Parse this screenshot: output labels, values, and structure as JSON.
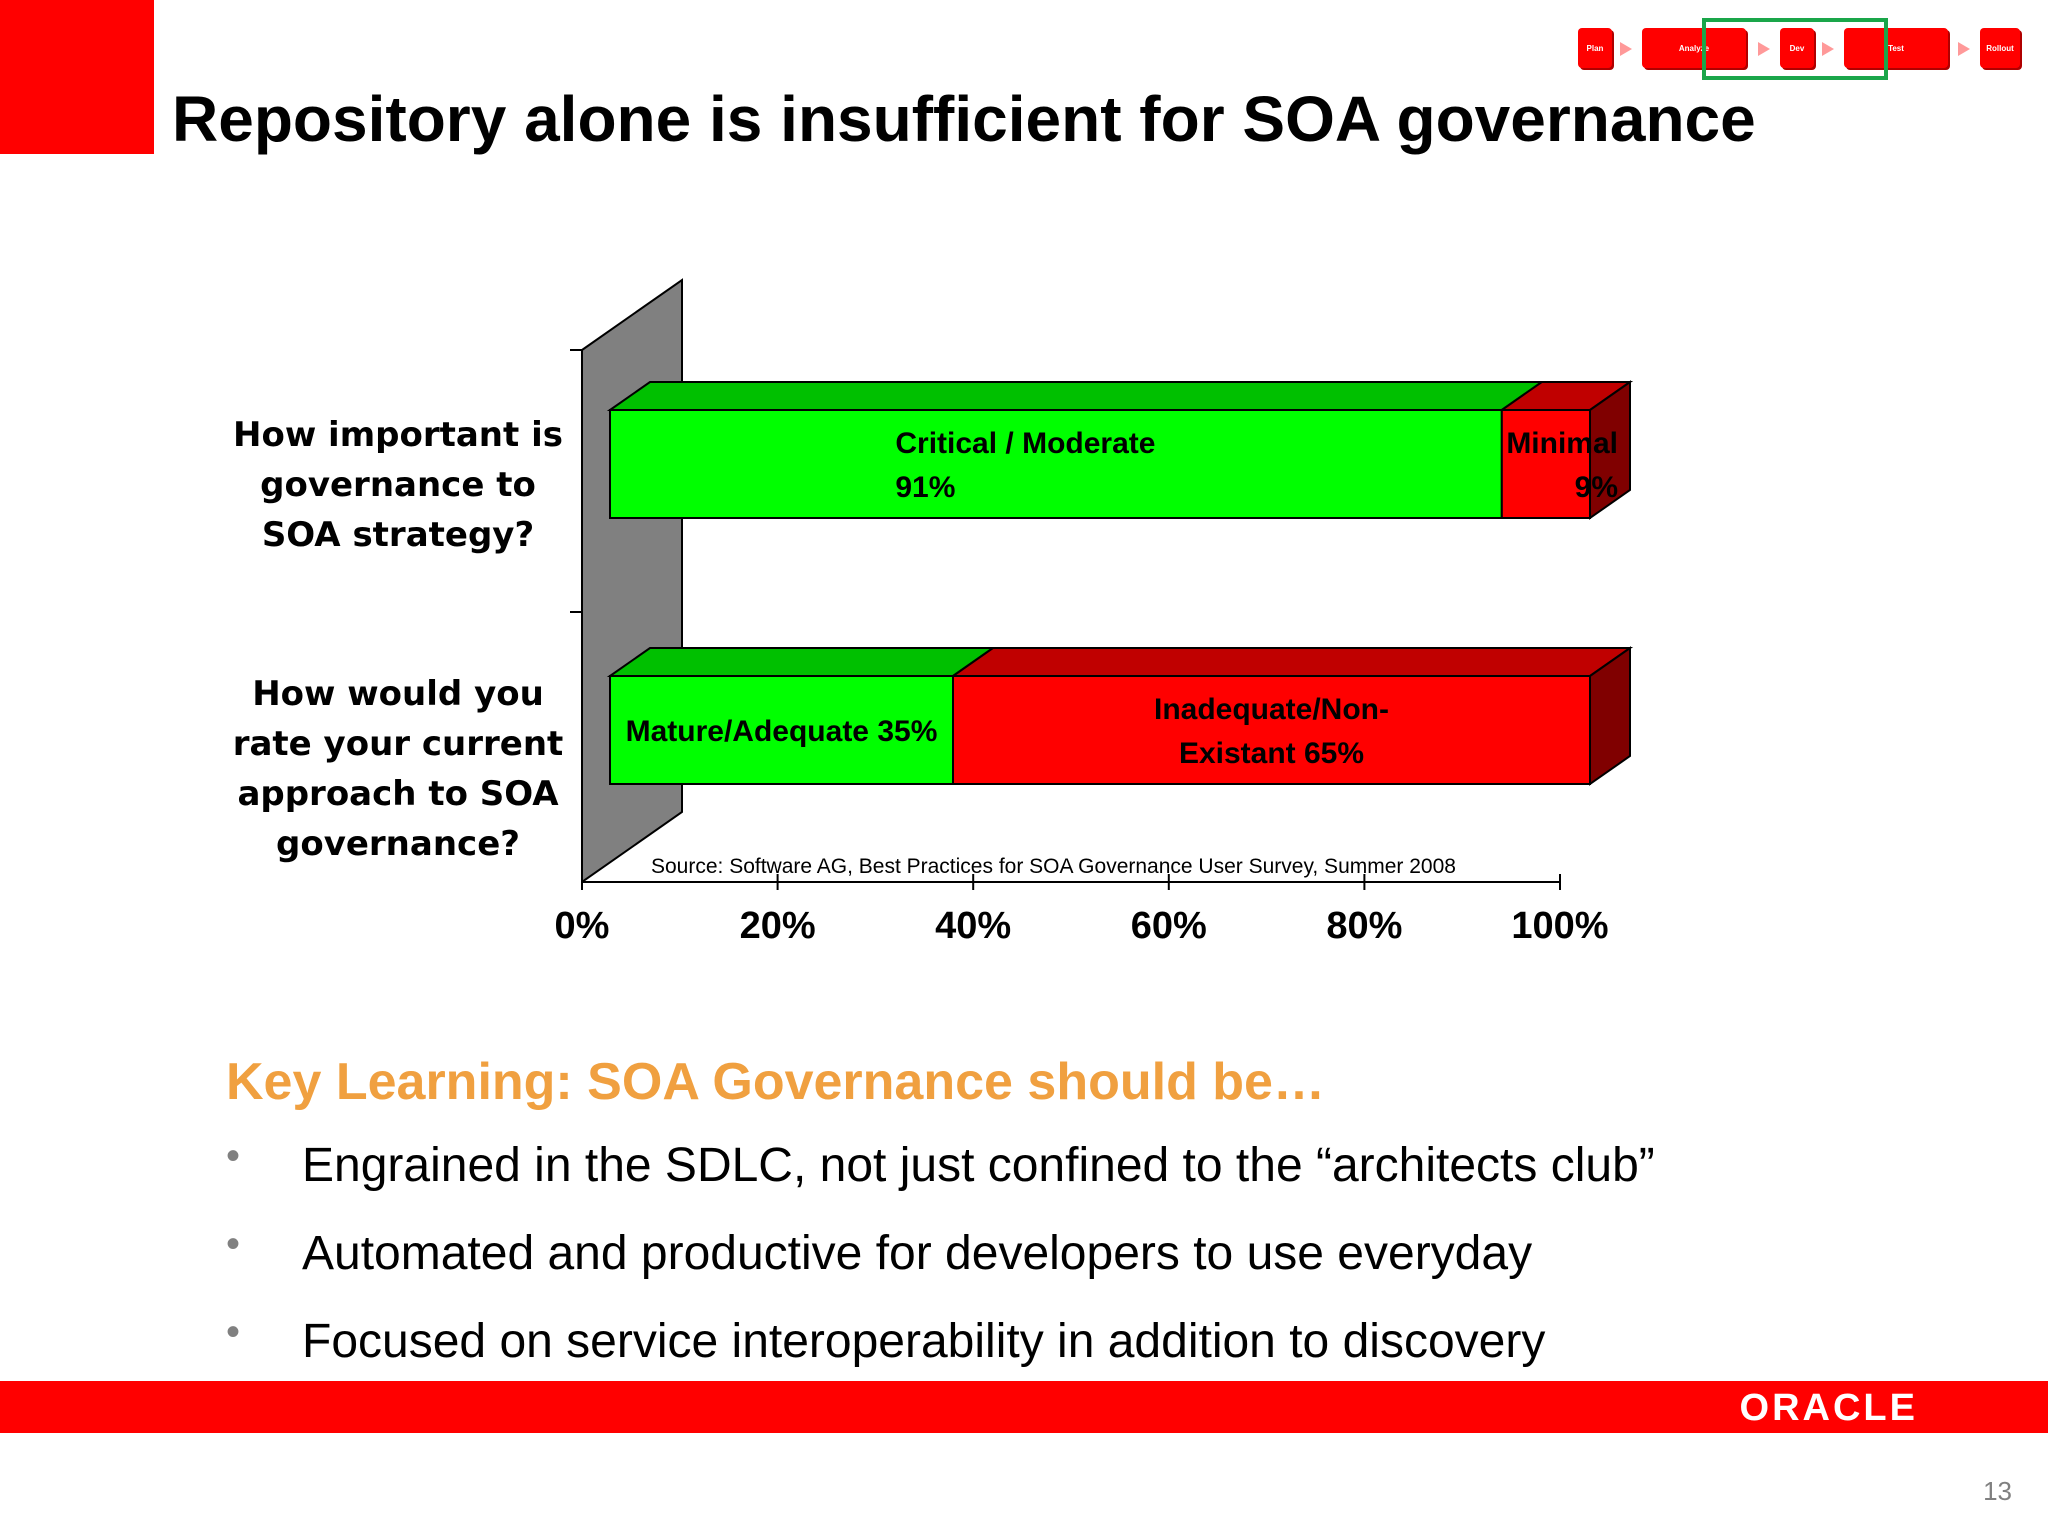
{
  "slide": {
    "title": "Repository alone is insufficient for SOA governance",
    "page_number": "13"
  },
  "process_steps": [
    {
      "label": "Plan"
    },
    {
      "label": "Analyze"
    },
    {
      "label": "Dev"
    },
    {
      "label": "Test"
    },
    {
      "label": "Rollout"
    }
  ],
  "colors": {
    "brand_red": "#ff0000",
    "positive_green": "#00ff00",
    "positive_green_top": "#00c000",
    "negative_red": "#ff0000",
    "negative_red_top": "#c00000",
    "negative_red_side": "#800000",
    "wall_gray": "#808080",
    "key_learning_orange": "#f0a040",
    "step_highlight_green": "#1aa64a"
  },
  "chart_data": {
    "type": "bar",
    "orientation": "horizontal",
    "stacked": true,
    "style": "3d",
    "categories": [
      [
        "How important is",
        "governance to",
        "SOA strategy?"
      ],
      [
        "How would you",
        "rate your current",
        "approach to SOA",
        "governance?"
      ]
    ],
    "segments": [
      [
        {
          "label_lines": [
            "Critical / Moderate",
            "91%"
          ],
          "value": 91,
          "color": "#00ff00",
          "top_color": "#00c000",
          "align": "left"
        },
        {
          "label_lines": [
            "Minimal",
            "9%"
          ],
          "value": 9,
          "color": "#ff0000",
          "top_color": "#c00000",
          "align": "right"
        }
      ],
      [
        {
          "label_lines": [
            "Mature/Adequate 35%"
          ],
          "value": 35,
          "color": "#00ff00",
          "top_color": "#00c000",
          "align": "center"
        },
        {
          "label_lines": [
            "Inadequate/Non-",
            "Existant 65%"
          ],
          "value": 65,
          "color": "#ff0000",
          "top_color": "#c00000",
          "align": "center"
        }
      ]
    ],
    "x_ticks": [
      "0%",
      "20%",
      "40%",
      "60%",
      "80%",
      "100%"
    ],
    "xlim": [
      0,
      100
    ],
    "source_note": "Source: Software AG, Best Practices for SOA Governance User Survey, Summer 2008",
    "grid": false,
    "legend": "none"
  },
  "key_learning": {
    "heading": "Key Learning: SOA Governance should be…",
    "bullets": [
      "Engrained in the SDLC, not just confined to the “architects club”",
      "Automated and productive for developers to use everyday",
      "Focused on service interoperability in addition to discovery"
    ]
  },
  "footer": {
    "logo_text": "ORACLE"
  }
}
